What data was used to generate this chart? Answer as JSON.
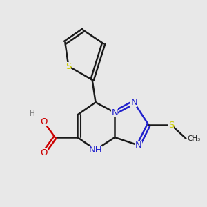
{
  "bg_color": "#e8e8e8",
  "bond_color": "#1a1a1a",
  "nitrogen_color": "#2020cc",
  "oxygen_color": "#cc0000",
  "sulfur_thiophene_color": "#cccc00",
  "sulfur_sme_color": "#cccc00",
  "h_color": "#4a9a9a",
  "lw": 1.8,
  "lw_double_inner": 1.5,
  "figsize": [
    3.0,
    3.0
  ],
  "dpi": 100,
  "xlim": [
    0.5,
    9.5
  ],
  "ylim": [
    1.5,
    9.5
  ],
  "font_size": 9.5
}
